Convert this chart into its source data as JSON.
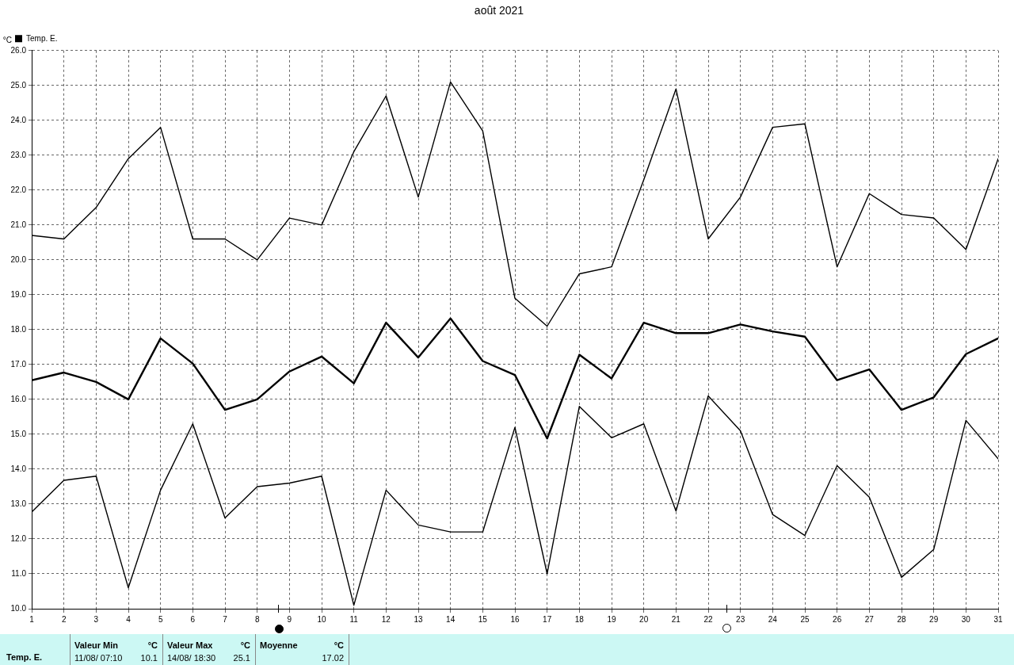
{
  "chart_data": {
    "type": "line",
    "title": "août 2021",
    "ylabel": "°C",
    "x": [
      1,
      2,
      3,
      4,
      5,
      6,
      7,
      8,
      9,
      10,
      11,
      12,
      13,
      14,
      15,
      16,
      17,
      18,
      19,
      20,
      21,
      22,
      23,
      24,
      25,
      26,
      27,
      28,
      29,
      30,
      31
    ],
    "series": [
      {
        "name": "Temp. E.",
        "color": "#000000",
        "values": [
          16.55,
          16.77,
          16.5,
          16.0,
          17.75,
          17.03,
          15.7,
          16.0,
          16.8,
          17.23,
          16.46,
          18.2,
          17.2,
          18.32,
          17.1,
          16.7,
          14.88,
          17.28,
          16.6,
          18.2,
          17.9,
          17.9,
          18.15,
          17.95,
          17.8,
          16.55,
          16.86,
          15.7,
          16.06,
          17.3,
          17.75
        ]
      },
      {
        "color": "#000000",
        "values": [
          20.7,
          20.6,
          21.5,
          22.9,
          23.8,
          20.6,
          20.6,
          20.0,
          21.2,
          21.0,
          23.1,
          24.7,
          21.8,
          25.1,
          23.7,
          18.9,
          18.1,
          19.6,
          19.8,
          22.3,
          24.9,
          20.6,
          21.8,
          23.8,
          23.9,
          19.8,
          21.9,
          21.3,
          21.2,
          20.3,
          22.9
        ]
      },
      {
        "color": "#000000",
        "values": [
          12.77,
          13.68,
          13.8,
          10.6,
          13.4,
          15.3,
          12.6,
          13.5,
          13.6,
          13.8,
          10.1,
          13.4,
          12.4,
          12.2,
          12.2,
          15.2,
          11.0,
          15.8,
          14.9,
          15.3,
          12.8,
          16.1,
          15.1,
          12.7,
          12.1,
          14.1,
          13.2,
          10.9,
          11.7,
          15.4,
          14.3
        ]
      }
    ],
    "xlim": [
      1,
      31
    ],
    "xticks": [
      1,
      2,
      3,
      4,
      5,
      6,
      7,
      8,
      9,
      10,
      11,
      12,
      13,
      14,
      15,
      16,
      17,
      18,
      19,
      20,
      21,
      22,
      23,
      24,
      25,
      26,
      27,
      28,
      29,
      30,
      31
    ],
    "ylim": [
      10,
      26
    ],
    "yticks": [
      {
        "value": 10,
        "label": "10.0"
      },
      {
        "value": 11,
        "label": "11.0"
      },
      {
        "value": 12,
        "label": "12.0"
      },
      {
        "value": 13,
        "label": "13.0"
      },
      {
        "value": 14,
        "label": "14.0"
      },
      {
        "value": 15,
        "label": "15.0"
      },
      {
        "value": 16,
        "label": "16.0"
      },
      {
        "value": 17,
        "label": "17.0"
      },
      {
        "value": 18,
        "label": "18.0"
      },
      {
        "value": 19,
        "label": "19.0"
      },
      {
        "value": 20,
        "label": "20.0"
      },
      {
        "value": 21,
        "label": "21.0"
      },
      {
        "value": 22,
        "label": "22.0"
      },
      {
        "value": 23,
        "label": "23.0"
      },
      {
        "value": 24,
        "label": "24.0"
      },
      {
        "value": 25,
        "label": "25.0"
      },
      {
        "value": 26,
        "label": "26.0"
      }
    ],
    "grid": true,
    "legend": "top left",
    "marker": "none",
    "line_style": "solid",
    "annotations": [
      "Temp. E.",
      "Valeur Min",
      "°C",
      "11/08/ 07:10",
      "10.1",
      "Valeur Max",
      "°C",
      "14/08/ 18:30",
      "25.1",
      "Moyenne",
      "°C",
      "17.02"
    ]
  }
}
